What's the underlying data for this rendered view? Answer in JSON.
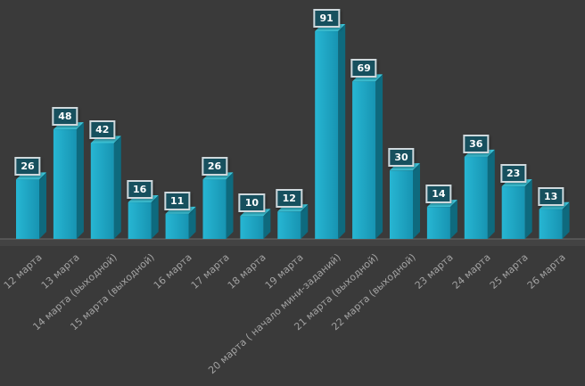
{
  "chart_data": {
    "type": "bar",
    "title": "",
    "categories": [
      "12 марта",
      "13 марта",
      "14 марта (выходной)",
      "15 марта (выходной)",
      "16 марта",
      "17 марта",
      "18 марта",
      "19 марта",
      "20 марта ( начало мини-заданий)",
      "21 марта (выходной)",
      "22 марта (выходной)",
      "23 марта",
      "24 марта",
      "25 марта",
      "26 марта"
    ],
    "values": [
      26,
      48,
      42,
      16,
      11,
      26,
      10,
      12,
      91,
      69,
      30,
      14,
      36,
      23,
      13
    ],
    "xlabel": "",
    "ylabel": "",
    "ylim": [
      0,
      100
    ],
    "grid": false,
    "legend": "none",
    "style": "3d-bars",
    "colors": {
      "background": "#3a3a3a",
      "bar_front_light": "#27b6d3",
      "bar_front_dark": "#1794b2",
      "bar_side": "#0e6a7e",
      "bar_top": "#3ec9de",
      "floor": "#434343",
      "baseline": "#6b6b6b",
      "value_box_bg": "#17505e",
      "value_box_border": "#cfd8dc",
      "value_text": "#ffffff",
      "axis_text": "#a2a2a2"
    }
  }
}
